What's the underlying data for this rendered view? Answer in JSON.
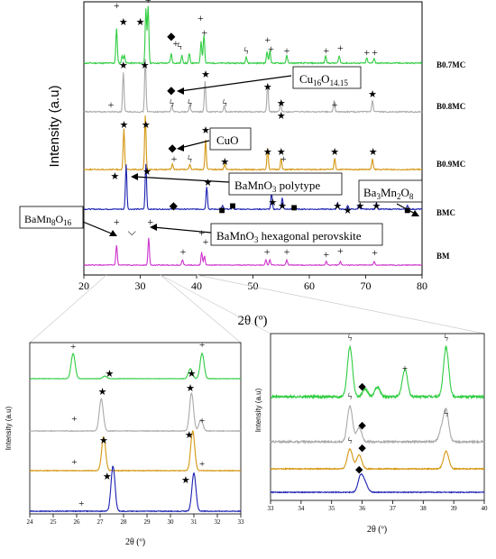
{
  "colors": {
    "B0.7MC": "#2ecc40",
    "B0.8MC": "#a9a9a9",
    "B0.9MC": "#d4960f",
    "BMC": "#1a20b0",
    "BM": "#cc33cc"
  },
  "chart_data": [
    {
      "type": "line",
      "panel": "main",
      "xlabel": "2θ (º)",
      "ylabel": "Intensity (a.u)",
      "xlim": [
        20,
        80
      ],
      "xticks": [
        "20",
        "30",
        "40",
        "50",
        "60",
        "70",
        "80"
      ],
      "series": [
        {
          "name": "B0.7MC",
          "peaks": [
            [
              25.8,
              0.55
            ],
            [
              26.8,
              0.12
            ],
            [
              27.2,
              0.12
            ],
            [
              31.0,
              0.85
            ],
            [
              31.4,
              0.9
            ],
            [
              35.5,
              0.15
            ],
            [
              37.4,
              0.12
            ],
            [
              38.7,
              0.15
            ],
            [
              40.8,
              0.35
            ],
            [
              41.3,
              0.45
            ],
            [
              48.8,
              0.1
            ],
            [
              52.5,
              0.18
            ],
            [
              53.0,
              0.2
            ],
            [
              56.0,
              0.12
            ],
            [
              62.9,
              0.12
            ],
            [
              65.3,
              0.12
            ],
            [
              70.2,
              0.08
            ],
            [
              71.5,
              0.08
            ]
          ]
        },
        {
          "name": "B0.8MC",
          "peaks": [
            [
              27.0,
              0.7
            ],
            [
              30.9,
              0.95
            ],
            [
              35.6,
              0.12
            ],
            [
              38.8,
              0.12
            ],
            [
              41.5,
              0.55
            ],
            [
              44.9,
              0.1
            ],
            [
              52.6,
              0.5
            ],
            [
              54.9,
              0.15
            ],
            [
              64.4,
              0.2
            ],
            [
              71.2,
              0.2
            ]
          ]
        },
        {
          "name": "B0.9MC",
          "peaks": [
            [
              27.1,
              0.75
            ],
            [
              30.9,
              1.0
            ],
            [
              35.7,
              0.1
            ],
            [
              38.8,
              0.1
            ],
            [
              41.6,
              0.55
            ],
            [
              45.0,
              0.1
            ],
            [
              52.6,
              0.4
            ],
            [
              55.0,
              0.2
            ],
            [
              64.5,
              0.2
            ],
            [
              71.2,
              0.2
            ]
          ]
        },
        {
          "name": "BMC",
          "peaks": [
            [
              27.5,
              1.0
            ],
            [
              31.0,
              1.0
            ],
            [
              35.9,
              0.08
            ],
            [
              41.8,
              0.5
            ],
            [
              44.6,
              0.08
            ],
            [
              46.4,
              0.08
            ],
            [
              53.3,
              0.35
            ],
            [
              55.2,
              0.25
            ],
            [
              57.2,
              0.08
            ],
            [
              65.0,
              0.15
            ],
            [
              66.8,
              0.08
            ],
            [
              68.8,
              0.1
            ],
            [
              71.9,
              0.15
            ],
            [
              77.4,
              0.08
            ]
          ]
        },
        {
          "name": "BM",
          "peaks": [
            [
              25.8,
              0.55
            ],
            [
              31.5,
              0.75
            ],
            [
              37.5,
              0.15
            ],
            [
              40.9,
              0.35
            ],
            [
              41.4,
              0.25
            ],
            [
              52.3,
              0.15
            ],
            [
              53.0,
              0.15
            ],
            [
              56.0,
              0.15
            ],
            [
              63.0,
              0.1
            ],
            [
              65.5,
              0.1
            ],
            [
              71.5,
              0.1
            ]
          ]
        }
      ],
      "annotations": [
        "BaMnO3 polytype",
        "BaMnO3 hexagonal perovskite",
        "Cu16O14.15",
        "CuO",
        "Ba3Mn2O8",
        "BaMn8O16"
      ]
    },
    {
      "type": "line",
      "panel": "inset-left",
      "xlabel": "2θ (º)",
      "ylabel": "Intensity (a.u)",
      "xlim": [
        24,
        33
      ],
      "xticks": [
        "24",
        "25",
        "26",
        "27",
        "28",
        "29",
        "30",
        "31",
        "32",
        "33"
      ]
    },
    {
      "type": "line",
      "panel": "inset-right",
      "xlabel": "2θ (º)",
      "ylabel": "Intensity (a.u)",
      "xlim": [
        33,
        40
      ],
      "xticks": [
        "33",
        "34",
        "35",
        "36",
        "37",
        "38",
        "39",
        "40"
      ]
    }
  ],
  "labels": {
    "main_xlabel": "2θ (º)",
    "main_ylabel": "Intensity (a.u)",
    "inset_xlabel": "2θ (º)",
    "inset_ylabel": "Intensity (a.u)",
    "series_B07": "B0.7MC",
    "series_B08": "B0.8MC",
    "series_B09": "B0.9MC",
    "series_BMC": "BMC",
    "series_BM": "BM",
    "box_cu16": "Cu16O14.15",
    "box_cuo": "CuO",
    "box_polytype": "BaMnO3 polytype",
    "box_ba3": "Ba3Mn2O8",
    "box_hex": "BaMnO3 hexagonal perovskite",
    "box_bamn8": "BaMn8O16"
  },
  "symbols": {
    "star": "★",
    "plus": "+",
    "diamond": "◆",
    "square": "■",
    "bolt": "ϟ",
    "chevron": "⌵"
  }
}
